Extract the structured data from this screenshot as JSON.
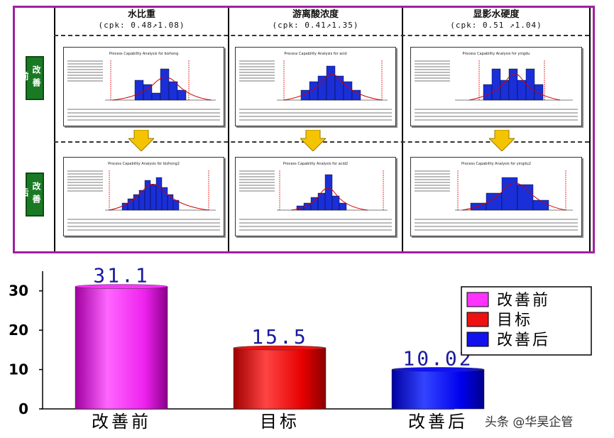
{
  "panel": {
    "columns": [
      {
        "title": "水比重",
        "cpk": "(cpk: 0.48↗1.08)",
        "before_caption": "Process Capability Analysis for bizhong",
        "after_caption": "Process Capability Analysis for bizhong2"
      },
      {
        "title": "游离酸浓度",
        "cpk": "(cpk: 0.41↗1.35)",
        "before_caption": "Process Capability Analysis for acid",
        "after_caption": "Process Capability Analysis for acid2"
      },
      {
        "title": "显影水硬度",
        "cpk": "(cpk: 0.51 ↗1.04)",
        "before_caption": "Process Capability Analysis for yingdu",
        "after_caption": "Process Capability Analysis for yingdu2"
      }
    ],
    "row_labels": {
      "before": "改善前",
      "after": "改善后"
    }
  },
  "chart_data": {
    "type": "bar",
    "categories": [
      "改善前",
      "目标",
      "改善后"
    ],
    "values": [
      31.1,
      15.5,
      10.02
    ],
    "data_labels": [
      "31.1",
      "15.5",
      "10.02"
    ],
    "yticks": [
      "0",
      "10",
      "20",
      "30"
    ],
    "ylim": [
      0,
      35
    ],
    "title": "",
    "xlabel": "",
    "ylabel": "",
    "colors": [
      "#ff33ff",
      "#ee1111",
      "#1111ee"
    ],
    "legend": {
      "position": "right",
      "entries": [
        "改善前",
        "目标",
        "改善后"
      ]
    }
  },
  "watermark": "头条 @华昊企管"
}
